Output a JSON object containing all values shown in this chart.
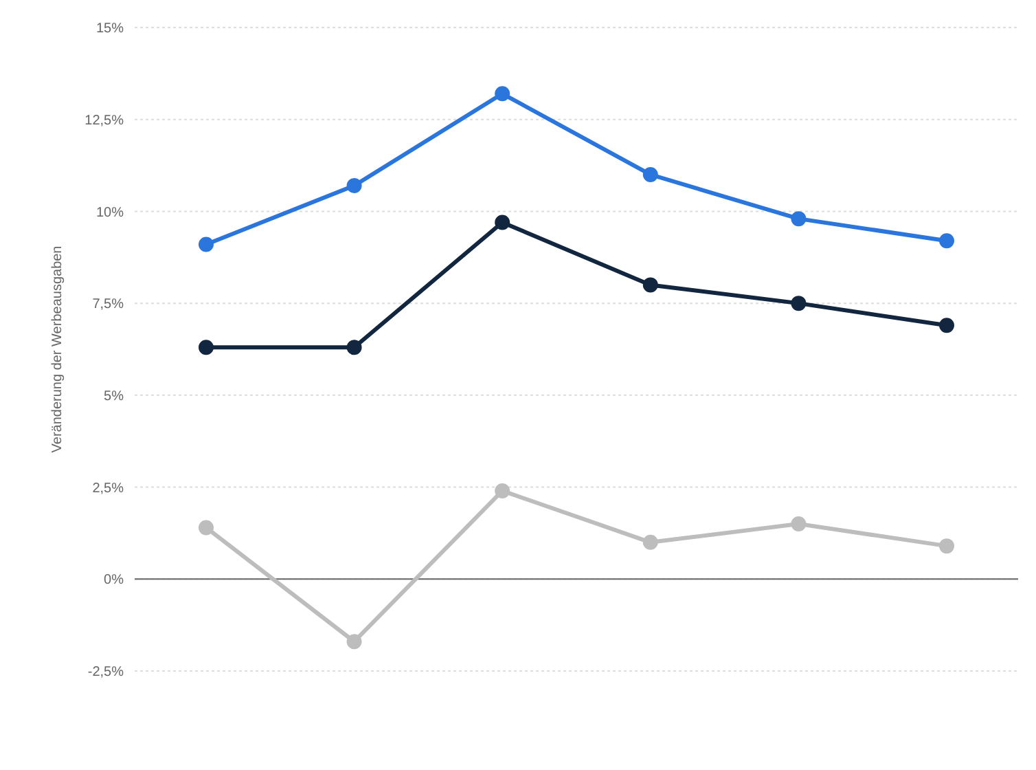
{
  "chart_data": {
    "type": "line",
    "ylabel": "Veränderung der Werbeausgaben",
    "categories": [
      null,
      null,
      null,
      null,
      null,
      null
    ],
    "series": [
      {
        "color": "#2a76dd",
        "values": [
          9.1,
          10.7,
          13.2,
          11.0,
          9.8,
          9.2
        ]
      },
      {
        "color": "#12263f",
        "values": [
          6.3,
          6.3,
          9.7,
          8.0,
          7.5,
          6.9
        ]
      },
      {
        "color": "#bdbdbd",
        "values": [
          1.4,
          -1.7,
          2.4,
          1.0,
          1.5,
          0.9
        ]
      }
    ],
    "ylim": [
      -2.5,
      15
    ],
    "yticks": [
      {
        "value": -2.5,
        "label": "-2,5%"
      },
      {
        "value": 0,
        "label": "0%"
      },
      {
        "value": 2.5,
        "label": "2,5%"
      },
      {
        "value": 5,
        "label": "5%"
      },
      {
        "value": 7.5,
        "label": "7,5%"
      },
      {
        "value": 10,
        "label": "10%"
      },
      {
        "value": 12.5,
        "label": "12,5%"
      },
      {
        "value": 15,
        "label": "15%"
      }
    ],
    "ref_lines": [
      {
        "axis": "y",
        "value": 0,
        "color": "#666666"
      }
    ],
    "grid": "y",
    "marker": "circle",
    "line_style": "solid",
    "legend": false,
    "tick_labels": "y"
  }
}
